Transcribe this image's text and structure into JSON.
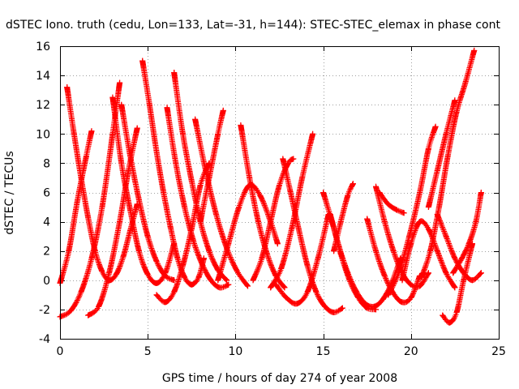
{
  "chart_data": {
    "type": "scatter",
    "title": "dSTEC Iono. truth (cedu, Lon=133, Lat=-31, h=144): STEC-STEC_elemax in phase cont",
    "xlabel": "GPS time / hours of day 274 of year 2008",
    "ylabel": "dSTEC  / TECUs",
    "xlim": [
      0,
      25
    ],
    "ylim": [
      -4,
      16
    ],
    "x_ticks": [
      0,
      5,
      10,
      15,
      20,
      25
    ],
    "y_ticks": [
      -4,
      -2,
      0,
      2,
      4,
      6,
      8,
      10,
      12,
      14,
      16
    ],
    "grid": true,
    "marker": "+",
    "color": "#ff0000",
    "series": [
      {
        "x": [
          0.4,
          0.8,
          1.2,
          1.6,
          2.0,
          2.4,
          2.8,
          3.2,
          3.6,
          4.0,
          4.4
        ],
        "y": [
          13.2,
          10.0,
          7.0,
          4.3,
          2.0,
          0.6,
          0.0,
          0.4,
          1.6,
          3.4,
          5.2
        ]
      },
      {
        "x": [
          0.0,
          0.6,
          1.2,
          1.8,
          2.4,
          3.0,
          3.4
        ],
        "y": [
          -2.5,
          -2.1,
          -0.8,
          1.5,
          5.0,
          10.0,
          13.5
        ]
      },
      {
        "x": [
          0.0,
          0.5,
          1.0,
          1.5,
          1.8
        ],
        "y": [
          -0.2,
          2.0,
          5.5,
          8.5,
          10.2
        ]
      },
      {
        "x": [
          3.0,
          3.5,
          4.0,
          4.5,
          5.0,
          5.5,
          6.0,
          6.5
        ],
        "y": [
          12.5,
          8.0,
          4.8,
          2.0,
          0.4,
          -0.2,
          0.5,
          2.5
        ]
      },
      {
        "x": [
          4.7,
          5.1,
          5.5,
          5.9,
          6.3,
          6.7,
          7.1,
          7.5,
          7.9,
          8.2
        ],
        "y": [
          15.0,
          12.0,
          8.8,
          6.0,
          3.6,
          1.5,
          0.2,
          -0.3,
          0.2,
          1.5
        ]
      },
      {
        "x": [
          6.1,
          6.6,
          7.1,
          7.6,
          8.1,
          8.6,
          9.1,
          9.6
        ],
        "y": [
          11.8,
          8.0,
          5.0,
          2.7,
          1.1,
          0.0,
          -0.5,
          -0.3
        ]
      },
      {
        "x": [
          6.5,
          7.0,
          7.5,
          8.0,
          8.5,
          9.0,
          9.5
        ],
        "y": [
          14.2,
          10.0,
          6.8,
          4.0,
          2.0,
          0.7,
          0.0
        ]
      },
      {
        "x": [
          7.7,
          8.3,
          8.9,
          9.5,
          10.1,
          10.7
        ],
        "y": [
          11.0,
          7.5,
          4.5,
          2.2,
          0.6,
          -0.4
        ]
      },
      {
        "x": [
          8.0,
          8.5,
          9.0,
          9.3
        ],
        "y": [
          4.0,
          7.0,
          10.0,
          11.6
        ]
      },
      {
        "x": [
          1.6,
          2.2,
          2.8,
          3.4,
          3.9,
          4.4
        ],
        "y": [
          -2.4,
          -1.8,
          0.5,
          4.0,
          7.5,
          10.4
        ]
      },
      {
        "x": [
          3.5,
          4.0,
          4.5,
          5.0,
          5.5,
          6.0,
          6.5
        ],
        "y": [
          12.0,
          8.5,
          5.5,
          3.0,
          1.3,
          0.3,
          0.0
        ]
      },
      {
        "x": [
          5.5,
          6.0,
          6.5,
          7.0,
          7.5,
          8.0,
          8.5
        ],
        "y": [
          -1.0,
          -1.5,
          -0.8,
          1.0,
          3.5,
          6.5,
          8.0
        ]
      },
      {
        "x": [
          10.3,
          10.8,
          11.3,
          11.8,
          12.3,
          12.8
        ],
        "y": [
          10.6,
          7.0,
          4.0,
          1.8,
          0.3,
          -0.5
        ]
      },
      {
        "x": [
          9.0,
          9.6,
          10.2,
          10.8,
          11.4,
          12.0,
          12.4
        ],
        "y": [
          0.0,
          2.5,
          5.0,
          6.5,
          5.8,
          4.0,
          2.5
        ]
      },
      {
        "x": [
          11.0,
          11.5,
          12.0,
          12.5,
          13.0,
          13.3
        ],
        "y": [
          0.0,
          1.5,
          4.0,
          6.5,
          8.0,
          8.3
        ]
      },
      {
        "x": [
          12.7,
          13.1,
          13.6,
          14.1,
          14.6,
          15.1,
          15.6,
          16.1
        ],
        "y": [
          8.3,
          6.2,
          3.5,
          1.0,
          -0.8,
          -1.8,
          -2.2,
          -1.9
        ]
      },
      {
        "x": [
          12.0,
          12.6,
          13.2,
          13.8,
          14.4
        ],
        "y": [
          -0.5,
          0.8,
          3.5,
          7.0,
          10.0
        ]
      },
      {
        "x": [
          12.3,
          12.9,
          13.5,
          14.1,
          14.7,
          15.3
        ],
        "y": [
          -0.3,
          -1.2,
          -1.6,
          -0.8,
          1.5,
          4.5
        ]
      },
      {
        "x": [
          15.0,
          15.5,
          16.0,
          16.5,
          17.0,
          17.5,
          18.0
        ],
        "y": [
          6.0,
          4.0,
          1.8,
          0.0,
          -1.2,
          -1.9,
          -2.0
        ]
      },
      {
        "x": [
          15.4,
          15.9,
          16.4,
          16.9,
          17.4,
          17.9,
          18.4,
          18.9,
          19.4
        ],
        "y": [
          4.5,
          2.3,
          0.5,
          -0.8,
          -1.6,
          -1.8,
          -1.3,
          -0.2,
          1.5
        ]
      },
      {
        "x": [
          15.6,
          16.0,
          16.4,
          16.7
        ],
        "y": [
          2.0,
          4.0,
          5.8,
          6.6
        ]
      },
      {
        "x": [
          17.5,
          18.0,
          18.5,
          19.0,
          19.5,
          20.0,
          20.5
        ],
        "y": [
          4.2,
          2.0,
          0.3,
          -0.9,
          -1.5,
          -1.2,
          0.3
        ]
      },
      {
        "x": [
          18.0,
          18.5,
          19.0,
          19.5,
          20.0,
          20.5,
          21.0
        ],
        "y": [
          6.4,
          4.0,
          2.0,
          0.5,
          -0.3,
          -0.4,
          0.5
        ]
      },
      {
        "x": [
          18.2,
          18.7,
          19.2,
          19.6
        ],
        "y": [
          6.0,
          5.2,
          4.8,
          4.6
        ]
      },
      {
        "x": [
          18.7,
          19.3,
          19.9,
          20.5,
          21.0,
          21.4
        ],
        "y": [
          -1.0,
          0.5,
          3.0,
          6.0,
          9.0,
          10.5
        ]
      },
      {
        "x": [
          19.5,
          20.0,
          20.5,
          21.0,
          21.5,
          22.0,
          22.5
        ],
        "y": [
          0.0,
          2.5,
          4.0,
          3.5,
          2.0,
          0.5,
          -0.5
        ]
      },
      {
        "x": [
          20.6,
          21.1,
          21.6,
          22.1,
          22.6,
          23.1,
          23.6
        ],
        "y": [
          0.2,
          2.0,
          5.0,
          8.5,
          11.5,
          13.5,
          15.7
        ]
      },
      {
        "x": [
          21.0,
          21.5,
          22.0,
          22.5
        ],
        "y": [
          5.0,
          7.5,
          10.0,
          12.3
        ]
      },
      {
        "x": [
          21.8,
          22.2,
          22.6,
          23.0,
          23.5
        ],
        "y": [
          -2.4,
          -2.9,
          -2.2,
          0.0,
          2.5
        ]
      },
      {
        "x": [
          21.5,
          22.0,
          22.5,
          23.0,
          23.5,
          24.0
        ],
        "y": [
          4.5,
          3.0,
          1.5,
          0.5,
          0.0,
          0.5
        ]
      },
      {
        "x": [
          22.4,
          22.9,
          23.3,
          23.7,
          24.0
        ],
        "y": [
          0.5,
          1.5,
          2.5,
          4.0,
          6.0
        ]
      }
    ]
  }
}
